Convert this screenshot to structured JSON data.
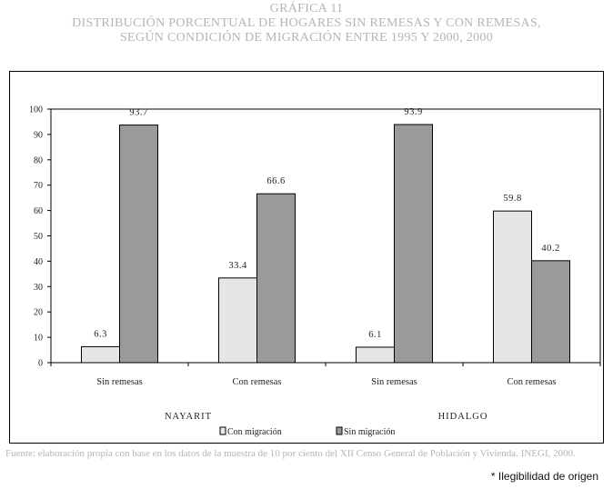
{
  "title": {
    "line1": "GRÁFICA 11",
    "line2": "DISTRIBUCIÓN PORCENTUAL DE HOGARES SIN REMESAS Y CON REMESAS,",
    "line3": "SEGÚN CONDICIÓN DE MIGRACIÓN ENTRE 1995 Y 2000, 2000"
  },
  "source": "Fuente: elaboración propia con base en los datos de la muestra de 10 por ciento del XII Censo General de Población y Vivienda. INEGI, 2000.",
  "note": "* Ilegibilidad de origen",
  "colors": {
    "con_migracion": "#e6e6e6",
    "sin_migracion": "#9a9a9a",
    "title_gray": "#b5b5b5"
  },
  "chart_data": {
    "type": "bar",
    "ylim": [
      0,
      100
    ],
    "yticks": [
      0,
      10,
      20,
      30,
      40,
      50,
      60,
      70,
      80,
      90,
      100
    ],
    "grid": false,
    "legend_position": "bottom",
    "groups": [
      {
        "name": "NAYARIT",
        "categories": [
          "Sin remesas",
          "Con remesas"
        ]
      },
      {
        "name": "HIDALGO",
        "categories": [
          "Sin remesas",
          "Con remesas"
        ]
      }
    ],
    "categories": [
      "Sin remesas",
      "Con remesas",
      "Sin remesas",
      "Con remesas"
    ],
    "series": [
      {
        "name": "Con migración",
        "values": [
          6.3,
          33.4,
          6.1,
          59.8
        ],
        "labels": [
          "6.3",
          "33.4",
          "6.1",
          "59.8"
        ]
      },
      {
        "name": "Sin migración",
        "values": [
          93.7,
          66.6,
          93.9,
          40.2
        ],
        "labels": [
          "93.7",
          "66.6",
          "93.9",
          "40.2"
        ]
      }
    ]
  }
}
